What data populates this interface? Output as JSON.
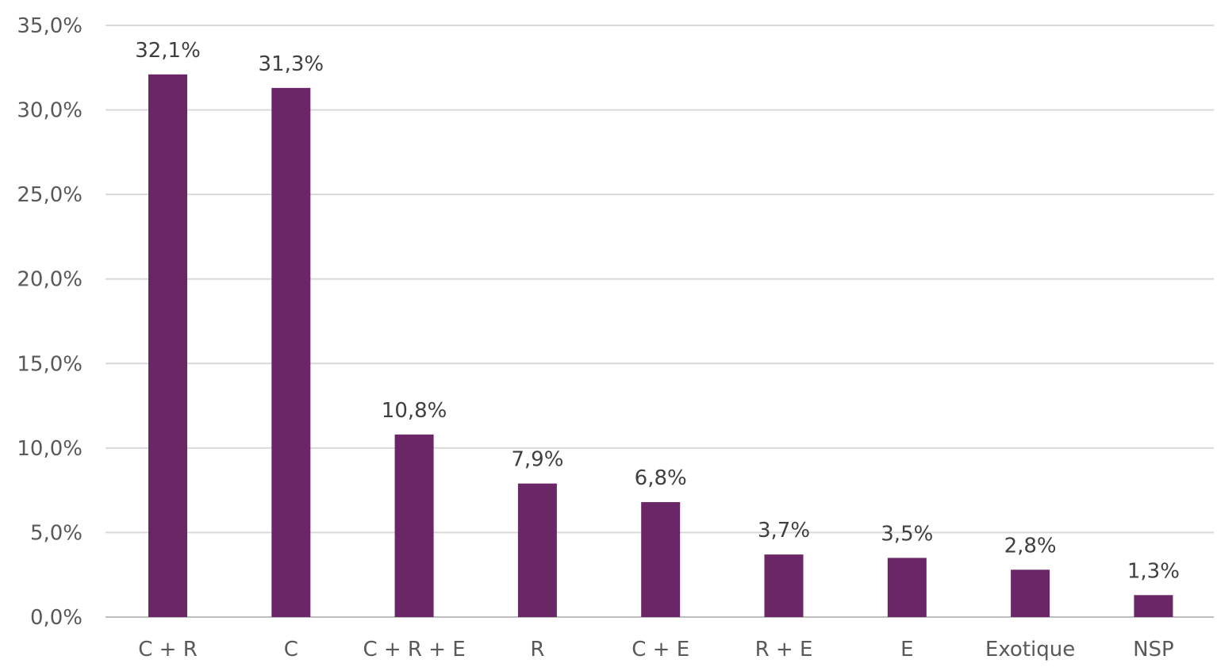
{
  "chart_data": {
    "type": "bar",
    "categories": [
      "C + R",
      "C",
      "C + R + E",
      "R",
      "C + E",
      "R + E",
      "E",
      "Exotique",
      "NSP"
    ],
    "values": [
      32.1,
      31.3,
      10.8,
      7.9,
      6.8,
      3.7,
      3.5,
      2.8,
      1.3
    ],
    "data_labels": [
      "32,1%",
      "31,3%",
      "10,8%",
      "7,9%",
      "6,8%",
      "3,7%",
      "3,5%",
      "2,8%",
      "1,3%"
    ],
    "y_ticks": [
      0,
      5,
      10,
      15,
      20,
      25,
      30,
      35
    ],
    "y_tick_labels": [
      "0,0%",
      "5,0%",
      "10,0%",
      "15,0%",
      "20,0%",
      "25,0%",
      "30,0%",
      "35,0%"
    ],
    "ylim": [
      0,
      35
    ],
    "title": "",
    "xlabel": "",
    "ylabel": "",
    "grid": true,
    "legend": false,
    "bar_color": "#6b2667"
  }
}
